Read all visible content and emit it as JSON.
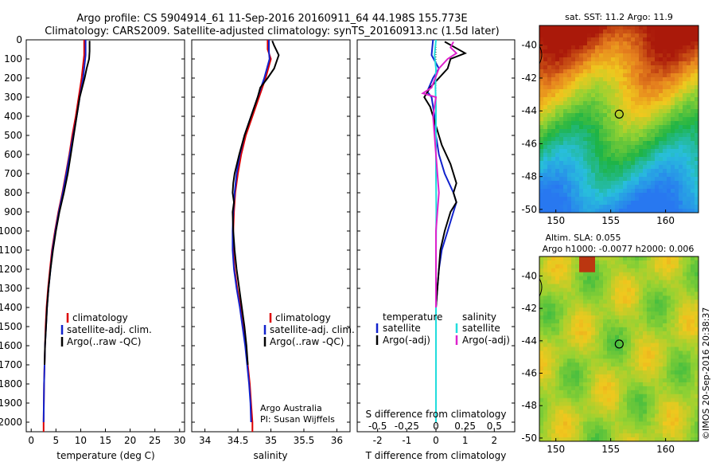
{
  "title": {
    "line1": "Argo profile: CS 5904914_61 11-Sep-2016 20160911_64 44.198S 155.773E",
    "line2": "Climatology: CARS2009. Satellite-adjusted climatology: synTS_20160913.nc (1.5d later)"
  },
  "watermark": "©IMOS 20-Sep-2016 20:38:37",
  "credit": {
    "line1": "Argo Australia",
    "line2": "PI: Susan Wijffels"
  },
  "colors": {
    "climatology": "#dd0000",
    "satellite": "#1122cc",
    "argo": "#000000",
    "sat_salinity": "#22dddd",
    "argo_salinity": "#dd22cc"
  },
  "chart_data": [
    {
      "type": "line",
      "xlabel": "temperature (deg C)",
      "ylabel": "",
      "xlim": [
        -1,
        31
      ],
      "ylim": [
        2050,
        0
      ],
      "xticks": [
        "0",
        "5",
        "10",
        "15",
        "20",
        "25",
        "30"
      ],
      "yticks": [
        "0",
        "100",
        "200",
        "300",
        "400",
        "500",
        "600",
        "700",
        "800",
        "900",
        "1000",
        "1100",
        "1200",
        "1300",
        "1400",
        "1500",
        "1600",
        "1700",
        "1800",
        "1900",
        "2000"
      ],
      "legend": [
        "climatology",
        "satellite-adj. clim.",
        "Argo(..raw -QC)"
      ],
      "series": [
        {
          "name": "climatology",
          "color": "#dd0000",
          "points": [
            [
              10.7,
              0
            ],
            [
              10.7,
              80
            ],
            [
              10.2,
              200
            ],
            [
              9.6,
              300
            ],
            [
              9.0,
              400
            ],
            [
              8.3,
              500
            ],
            [
              7.7,
              600
            ],
            [
              7.0,
              700
            ],
            [
              6.3,
              800
            ],
            [
              5.5,
              900
            ],
            [
              4.8,
              1000
            ],
            [
              4.2,
              1100
            ],
            [
              3.8,
              1200
            ],
            [
              3.4,
              1300
            ],
            [
              3.1,
              1400
            ],
            [
              2.9,
              1500
            ],
            [
              2.8,
              1600
            ],
            [
              2.6,
              1800
            ],
            [
              2.5,
              2000
            ],
            [
              2.5,
              2050
            ]
          ]
        },
        {
          "name": "satellite-adj. clim.",
          "color": "#1122cc",
          "points": [
            [
              11.0,
              0
            ],
            [
              11.0,
              80
            ],
            [
              10.5,
              200
            ],
            [
              9.8,
              300
            ],
            [
              9.2,
              400
            ],
            [
              8.5,
              500
            ],
            [
              7.8,
              600
            ],
            [
              7.1,
              700
            ],
            [
              6.4,
              800
            ],
            [
              5.6,
              900
            ],
            [
              4.9,
              1000
            ],
            [
              4.3,
              1100
            ],
            [
              3.9,
              1200
            ],
            [
              3.5,
              1300
            ],
            [
              3.2,
              1400
            ],
            [
              3.0,
              1500
            ],
            [
              2.8,
              1600
            ],
            [
              2.6,
              1800
            ],
            [
              2.5,
              2000
            ]
          ]
        },
        {
          "name": "Argo(..raw -QC)",
          "color": "#000000",
          "points": [
            [
              11.8,
              5
            ],
            [
              11.8,
              60
            ],
            [
              11.7,
              100
            ],
            [
              11.2,
              150
            ],
            [
              10.8,
              200
            ],
            [
              10.3,
              250
            ],
            [
              9.8,
              300
            ],
            [
              9.2,
              400
            ],
            [
              8.6,
              500
            ],
            [
              8.0,
              600
            ],
            [
              7.4,
              700
            ],
            [
              6.6,
              800
            ],
            [
              5.7,
              900
            ],
            [
              5.0,
              1000
            ],
            [
              4.4,
              1100
            ],
            [
              3.9,
              1200
            ],
            [
              3.5,
              1300
            ],
            [
              3.2,
              1400
            ],
            [
              3.0,
              1500
            ],
            [
              2.8,
              1600
            ],
            [
              2.7,
              1700
            ]
          ]
        }
      ]
    },
    {
      "type": "line",
      "xlabel": "salinity",
      "ylabel": "",
      "xlim": [
        33.8,
        36.2
      ],
      "ylim": [
        2050,
        0
      ],
      "xticks": [
        "34",
        "34.5",
        "35",
        "35.5",
        "36"
      ],
      "legend": [
        "climatology",
        "satellite-adj. clim.",
        "Argo(..raw -QC)"
      ],
      "series": [
        {
          "name": "climatology",
          "color": "#dd0000",
          "points": [
            [
              34.95,
              0
            ],
            [
              34.95,
              50
            ],
            [
              35.0,
              100
            ],
            [
              34.92,
              200
            ],
            [
              34.82,
              300
            ],
            [
              34.72,
              400
            ],
            [
              34.62,
              500
            ],
            [
              34.55,
              600
            ],
            [
              34.5,
              700
            ],
            [
              34.46,
              800
            ],
            [
              34.44,
              900
            ],
            [
              34.43,
              1000
            ],
            [
              34.43,
              1100
            ],
            [
              34.45,
              1200
            ],
            [
              34.49,
              1300
            ],
            [
              34.54,
              1400
            ],
            [
              34.58,
              1500
            ],
            [
              34.62,
              1600
            ],
            [
              34.65,
              1700
            ],
            [
              34.68,
              1800
            ],
            [
              34.7,
              1900
            ],
            [
              34.72,
              2000
            ],
            [
              34.72,
              2050
            ]
          ]
        },
        {
          "name": "satellite-adj. clim.",
          "color": "#1122cc",
          "points": [
            [
              34.97,
              0
            ],
            [
              34.97,
              60
            ],
            [
              34.98,
              100
            ],
            [
              34.9,
              200
            ],
            [
              34.8,
              300
            ],
            [
              34.7,
              400
            ],
            [
              34.6,
              500
            ],
            [
              34.53,
              600
            ],
            [
              34.48,
              700
            ],
            [
              34.45,
              800
            ],
            [
              34.43,
              900
            ],
            [
              34.42,
              1000
            ],
            [
              34.42,
              1100
            ],
            [
              34.44,
              1200
            ],
            [
              34.48,
              1300
            ],
            [
              34.53,
              1400
            ],
            [
              34.57,
              1500
            ],
            [
              34.61,
              1600
            ],
            [
              34.64,
              1700
            ],
            [
              34.67,
              1800
            ],
            [
              34.69,
              1900
            ],
            [
              34.7,
              2000
            ]
          ]
        },
        {
          "name": "Argo(..raw -QC)",
          "color": "#000000",
          "points": [
            [
              35.02,
              5
            ],
            [
              35.05,
              30
            ],
            [
              35.12,
              80
            ],
            [
              35.05,
              150
            ],
            [
              34.95,
              200
            ],
            [
              34.84,
              250
            ],
            [
              34.8,
              300
            ],
            [
              34.7,
              400
            ],
            [
              34.6,
              500
            ],
            [
              34.52,
              600
            ],
            [
              34.45,
              700
            ],
            [
              34.43,
              750
            ],
            [
              34.42,
              800
            ],
            [
              34.44,
              850
            ],
            [
              34.42,
              900
            ],
            [
              34.43,
              1000
            ],
            [
              34.45,
              1100
            ],
            [
              34.48,
              1200
            ],
            [
              34.52,
              1300
            ],
            [
              34.56,
              1400
            ],
            [
              34.6,
              1500
            ],
            [
              34.63,
              1600
            ],
            [
              34.65,
              1700
            ]
          ]
        }
      ]
    },
    {
      "type": "line",
      "xlabel": "T difference from climatology",
      "ylabel": "",
      "xlabel2": "S difference from climatology",
      "xlim": [
        -2.7,
        2.7
      ],
      "ylim": [
        2050,
        0
      ],
      "xticks": [
        "-2",
        "-1",
        "0",
        "1",
        "2"
      ],
      "xticks2": [
        "-0.5",
        "-0.25",
        "0",
        "0.25",
        "0.5"
      ],
      "legend": {
        "left_heading": "temperature",
        "right_heading": "salinity",
        "left": [
          "satellite",
          "Argo(-adj)"
        ],
        "right": [
          "satellite",
          "Argo(-adj)"
        ]
      },
      "series": [
        {
          "name": "satellite (temperature)",
          "color": "#1122cc",
          "points": [
            [
              -0.1,
              0
            ],
            [
              -0.15,
              80
            ],
            [
              0.1,
              150
            ],
            [
              -0.1,
              200
            ],
            [
              -0.3,
              270
            ],
            [
              -0.15,
              300
            ],
            [
              -0.05,
              400
            ],
            [
              0.0,
              500
            ],
            [
              0.1,
              600
            ],
            [
              0.3,
              700
            ],
            [
              0.6,
              800
            ],
            [
              0.7,
              850
            ],
            [
              0.6,
              900
            ],
            [
              0.4,
              1000
            ],
            [
              0.2,
              1100
            ],
            [
              0.1,
              1200
            ],
            [
              0.05,
              1300
            ],
            [
              0.0,
              1400
            ],
            [
              0.0,
              1600
            ],
            [
              0.0,
              1800
            ],
            [
              0.0,
              2000
            ]
          ]
        },
        {
          "name": "Argo(-adj) (temperature)",
          "color": "#000000",
          "points": [
            [
              0.3,
              10
            ],
            [
              1.0,
              70
            ],
            [
              0.5,
              100
            ],
            [
              0.4,
              150
            ],
            [
              -0.2,
              250
            ],
            [
              -0.4,
              300
            ],
            [
              -0.2,
              350
            ],
            [
              0.0,
              450
            ],
            [
              0.2,
              550
            ],
            [
              0.5,
              650
            ],
            [
              0.7,
              750
            ],
            [
              0.6,
              800
            ],
            [
              0.7,
              850
            ],
            [
              0.5,
              900
            ],
            [
              0.3,
              1000
            ],
            [
              0.15,
              1100
            ],
            [
              0.1,
              1200
            ],
            [
              0.05,
              1300
            ],
            [
              0.0,
              1400
            ],
            [
              0.0,
              1500
            ]
          ]
        },
        {
          "name": "satellite (salinity)",
          "color": "#22dddd",
          "points": [
            [
              0.0,
              0
            ],
            [
              -0.05,
              80
            ],
            [
              0.0,
              150
            ],
            [
              -0.02,
              250
            ],
            [
              0.0,
              350
            ],
            [
              0.0,
              500
            ],
            [
              0.0,
              700
            ],
            [
              0.01,
              900
            ],
            [
              0.0,
              1100
            ],
            [
              0.0,
              1300
            ],
            [
              0.0,
              1500
            ],
            [
              0.0,
              1700
            ],
            [
              0.0,
              1900
            ],
            [
              0.0,
              2000
            ]
          ]
        },
        {
          "name": "Argo(-adj) (salinity)",
          "color": "#dd22cc",
          "points": [
            [
              0.6,
              10
            ],
            [
              0.5,
              40
            ],
            [
              0.7,
              70
            ],
            [
              0.4,
              100
            ],
            [
              0.1,
              150
            ],
            [
              -0.15,
              250
            ],
            [
              -0.45,
              280
            ],
            [
              0.0,
              300
            ],
            [
              -0.1,
              400
            ],
            [
              -0.05,
              500
            ],
            [
              0.0,
              600
            ],
            [
              0.05,
              700
            ],
            [
              0.1,
              800
            ],
            [
              0.05,
              900
            ],
            [
              0.0,
              1000
            ],
            [
              0.0,
              1100
            ],
            [
              0.0,
              1200
            ],
            [
              0.0,
              1300
            ],
            [
              0.0,
              1400
            ]
          ]
        }
      ]
    },
    {
      "type": "heatmap",
      "title": "sat. SST: 11.2  Argo: 11.9",
      "xlim": [
        148.5,
        163
      ],
      "ylim": [
        -50.2,
        -38.8
      ],
      "xticks": [
        "150",
        "155",
        "160"
      ],
      "yticks": [
        "-40",
        "-42",
        "-44",
        "-46",
        "-48",
        "-50"
      ],
      "marker": {
        "lon": 155.773,
        "lat": -44.198
      }
    },
    {
      "type": "heatmap",
      "title": "Altim. SLA: 0.055",
      "subtitle": "Argo h1000: -0.0077 h2000: 0.006",
      "xlim": [
        148.5,
        163
      ],
      "ylim": [
        -50.2,
        -38.8
      ],
      "xticks": [
        "150",
        "155",
        "160"
      ],
      "yticks": [
        "-40",
        "-42",
        "-44",
        "-46",
        "-48",
        "-50"
      ],
      "marker": {
        "lon": 155.773,
        "lat": -44.198
      }
    }
  ]
}
